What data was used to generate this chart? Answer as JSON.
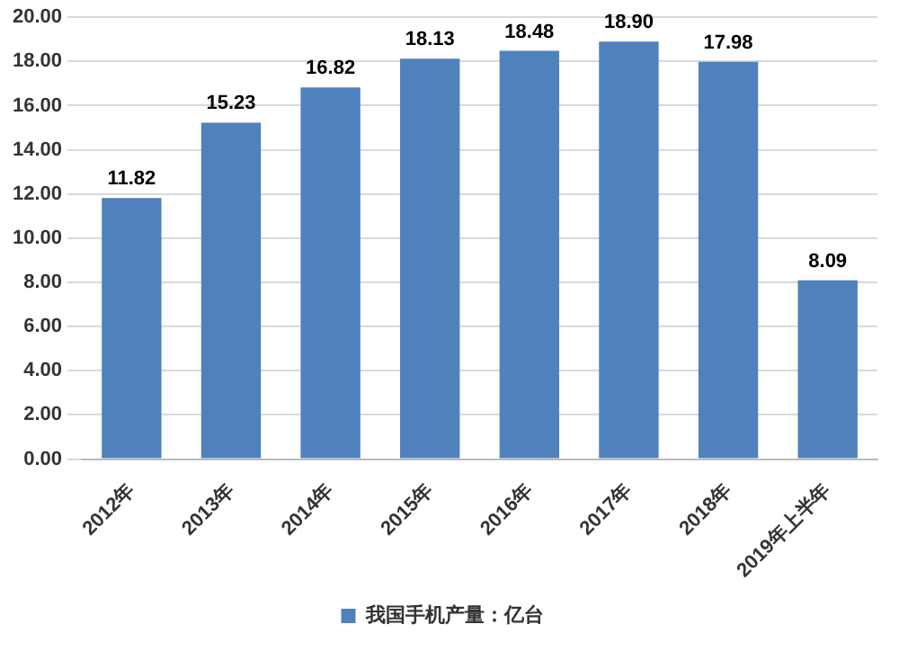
{
  "chart_data": {
    "type": "bar",
    "categories": [
      "2012年",
      "2013年",
      "2014年",
      "2015年",
      "2016年",
      "2017年",
      "2018年",
      "2019年上半年"
    ],
    "series": [
      {
        "name": "我国手机产量：亿台",
        "color": "#4f81bd",
        "values": [
          11.82,
          15.23,
          16.82,
          18.13,
          18.48,
          18.9,
          17.98,
          8.09
        ]
      }
    ],
    "ylim": [
      0,
      20
    ],
    "yticks": [
      {
        "value": 0,
        "label": "0.00"
      },
      {
        "value": 2,
        "label": "2.00"
      },
      {
        "value": 4,
        "label": "4.00"
      },
      {
        "value": 6,
        "label": "6.00"
      },
      {
        "value": 8,
        "label": "8.00"
      },
      {
        "value": 10,
        "label": "10.00"
      },
      {
        "value": 12,
        "label": "12.00"
      },
      {
        "value": 14,
        "label": "14.00"
      },
      {
        "value": 16,
        "label": "16.00"
      },
      {
        "value": 18,
        "label": "18.00"
      },
      {
        "value": 20,
        "label": "20.00"
      }
    ],
    "grid": "y",
    "legend": "bottom",
    "value_labels": [
      "11.82",
      "15.23",
      "16.82",
      "18.13",
      "18.48",
      "18.90",
      "17.98",
      "8.09"
    ]
  }
}
